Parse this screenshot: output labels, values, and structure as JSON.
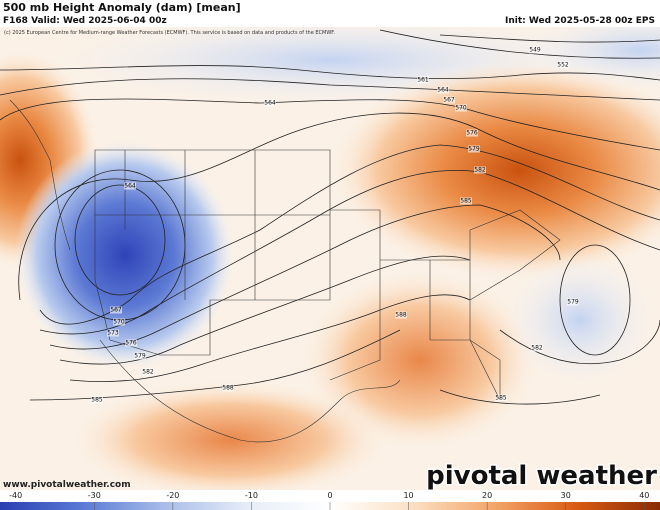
{
  "header": {
    "title": "500 mb Height Anomaly (dam) [mean]",
    "valid": "F168 Valid: Wed 2025-06-04 00z",
    "init": "Init: Wed 2025-05-28 00z EPS",
    "credit": "(c) 2025 European Centre for Medium-range Weather Forecasts (ECMWF). This service is based on data and products of the ECMWF."
  },
  "contour_labels": [
    "549",
    "552",
    "561",
    "564",
    "564",
    "567",
    "570",
    "576",
    "579",
    "582",
    "585",
    "564",
    "567",
    "570",
    "573",
    "576",
    "579",
    "582",
    "585",
    "588",
    "588",
    "579",
    "582",
    "585"
  ],
  "footer": {
    "url": "www.pivotalweather.com",
    "logo": "pivotal weather"
  },
  "colorbar": {
    "xlim": [
      -42,
      42
    ],
    "ticks": [
      -40,
      -30,
      -20,
      -10,
      0,
      10,
      20,
      30,
      40
    ],
    "colors": [
      "#2a3fb0",
      "#5a7ad6",
      "#a9bde9",
      "#e6edf8",
      "#ffffff",
      "#fbe0c4",
      "#f3a468",
      "#d85a12",
      "#8a2a05"
    ]
  }
}
